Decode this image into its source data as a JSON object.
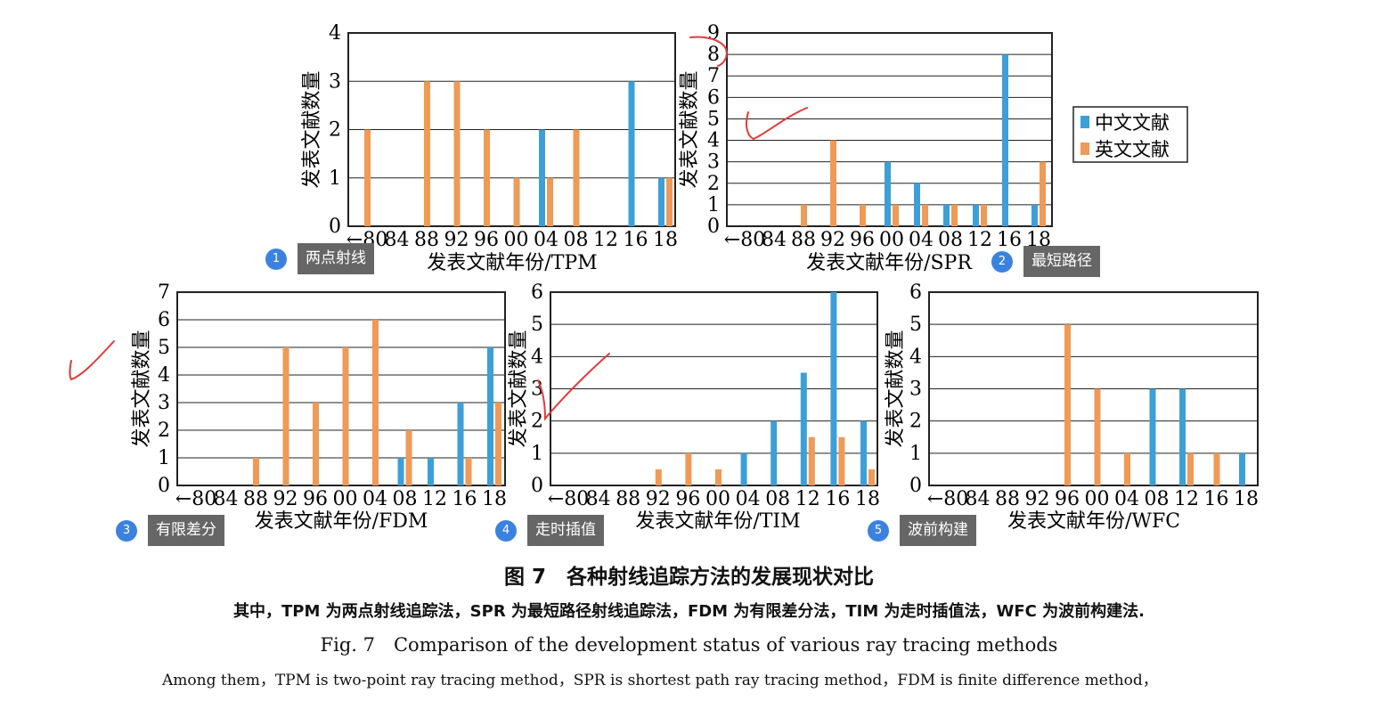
{
  "legend": {
    "cn": "中文文献",
    "en": "英文文献"
  },
  "colors": {
    "cn": "#3d9fd8",
    "en": "#ef9a57",
    "annotation": "#e23b3b"
  },
  "ylabel": "发表文献数量",
  "badges": [
    {
      "num": "1",
      "label": "两点射线"
    },
    {
      "num": "2",
      "label": "最短路径"
    },
    {
      "num": "3",
      "label": "有限差分"
    },
    {
      "num": "4",
      "label": "走时插值"
    },
    {
      "num": "5",
      "label": "波前构建"
    }
  ],
  "caption": {
    "cn_title": "图 7　各种射线追踪方法的发展现状对比",
    "cn_note": "其中，TPM 为两点射线追踪法，SPR 为最短路径射线追踪法，FDM 为有限差分法，TIM 为走时插值法，WFC 为波前构建法.",
    "en_title": "Fig. 7　Comparison of the development status of various ray tracing methods",
    "en_note": "Among them，TPM is two-point ray tracing method，SPR is shortest path ray tracing method，FDM is finite difference method，"
  },
  "chart_data": [
    {
      "type": "bar",
      "xlabel": "发表文献年份/TPM",
      "ylabel": "发表文献数量",
      "categories": [
        "←80",
        "84",
        "88",
        "92",
        "96",
        "00",
        "04",
        "08",
        "12",
        "16",
        "18"
      ],
      "ylim": [
        0,
        4
      ],
      "series": [
        {
          "name": "中文文献",
          "values": [
            0,
            0,
            0,
            0,
            0,
            0,
            2,
            0,
            0,
            3,
            1
          ]
        },
        {
          "name": "英文文献",
          "values": [
            2,
            0,
            3,
            3,
            2,
            1,
            1,
            2,
            0,
            0,
            1
          ]
        }
      ]
    },
    {
      "type": "bar",
      "xlabel": "发表文献年份/SPR",
      "ylabel": "发表文献数量",
      "categories": [
        "←80",
        "84",
        "88",
        "92",
        "96",
        "00",
        "04",
        "08",
        "12",
        "16",
        "18"
      ],
      "ylim": [
        0,
        9
      ],
      "legend": "right",
      "series": [
        {
          "name": "中文文献",
          "values": [
            0,
            0,
            0,
            0,
            0,
            3,
            2,
            1,
            1,
            8,
            1
          ]
        },
        {
          "name": "英文文献",
          "values": [
            0,
            0,
            1,
            4,
            1,
            1,
            1,
            1,
            1,
            0,
            3
          ]
        }
      ]
    },
    {
      "type": "bar",
      "xlabel": "发表文献年份/FDM",
      "ylabel": "发表文献数量",
      "categories": [
        "←80",
        "84",
        "88",
        "92",
        "96",
        "00",
        "04",
        "08",
        "12",
        "16",
        "18"
      ],
      "ylim": [
        0,
        7
      ],
      "series": [
        {
          "name": "中文文献",
          "values": [
            0,
            0,
            0,
            0,
            0,
            0,
            0,
            1,
            1,
            3,
            5
          ]
        },
        {
          "name": "英文文献",
          "values": [
            0,
            0,
            1,
            5,
            3,
            5,
            6,
            2,
            0,
            1,
            3
          ]
        }
      ]
    },
    {
      "type": "bar",
      "xlabel": "发表文献年份/TIM",
      "ylabel": "发表文献数量",
      "categories": [
        "←80",
        "84",
        "88",
        "92",
        "96",
        "00",
        "04",
        "08",
        "12",
        "16",
        "18"
      ],
      "ylim": [
        0,
        6
      ],
      "series": [
        {
          "name": "中文文献",
          "values": [
            0,
            0,
            0,
            0,
            0,
            0,
            1,
            2,
            3.5,
            6,
            2
          ]
        },
        {
          "name": "英文文献",
          "values": [
            0,
            0,
            0,
            0.5,
            1,
            0.5,
            0,
            0,
            1.5,
            1.5,
            0.5
          ]
        }
      ]
    },
    {
      "type": "bar",
      "xlabel": "发表文献年份/WFC",
      "ylabel": "发表文献数量",
      "categories": [
        "←80",
        "84",
        "88",
        "92",
        "96",
        "00",
        "04",
        "08",
        "12",
        "16",
        "18"
      ],
      "ylim": [
        0,
        6
      ],
      "series": [
        {
          "name": "中文文献",
          "values": [
            0,
            0,
            0,
            0,
            0,
            0,
            0,
            3,
            3,
            0,
            1
          ]
        },
        {
          "name": "英文文献",
          "values": [
            0,
            0,
            0,
            0,
            5,
            3,
            1,
            0,
            1,
            1,
            0
          ]
        }
      ]
    }
  ]
}
